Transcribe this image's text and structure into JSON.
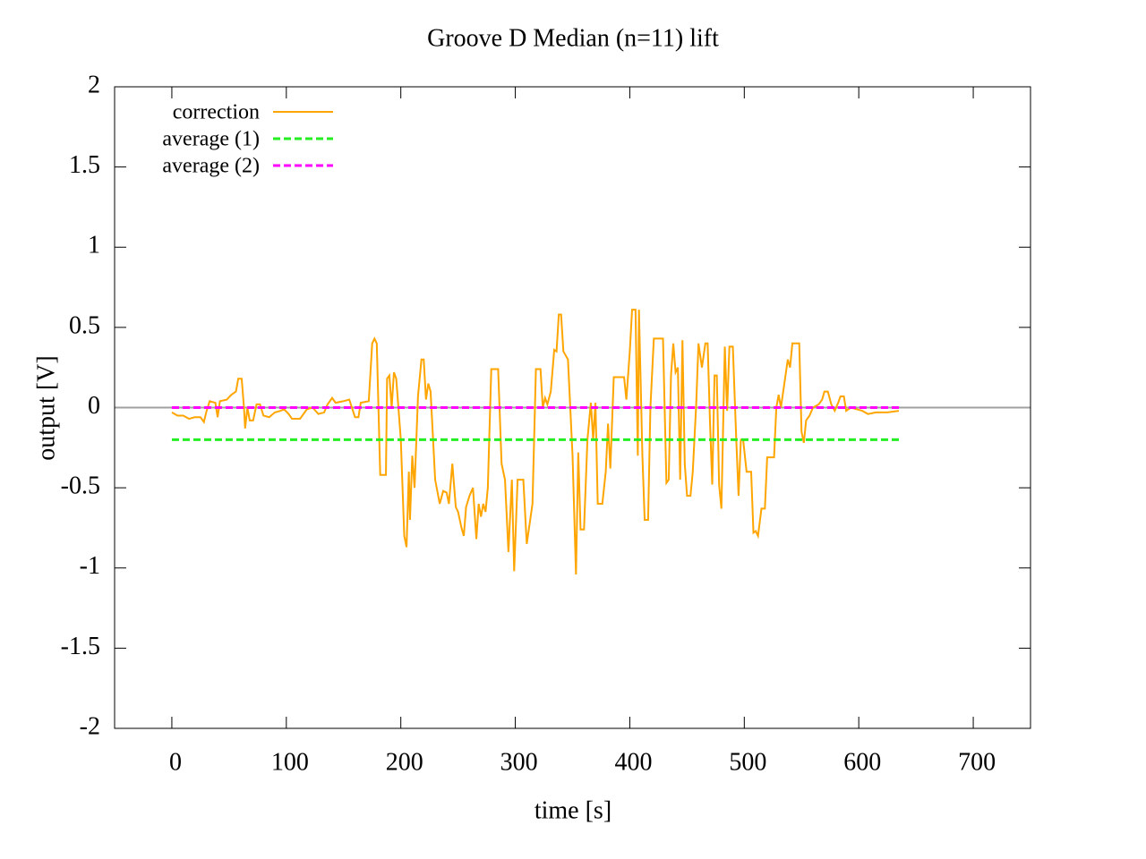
{
  "chart_data": {
    "type": "line",
    "title": "Groove D  Median (n=11) lift",
    "xlabel": "time [s]",
    "ylabel": "output [V]",
    "xlim": [
      -50,
      750
    ],
    "ylim": [
      -2,
      2
    ],
    "xticks": [
      0,
      100,
      200,
      300,
      400,
      500,
      600,
      700
    ],
    "yticks": [
      -2,
      -1.5,
      -1,
      -0.5,
      0,
      0.5,
      1,
      1.5,
      2
    ],
    "zeroaxis": true,
    "legend": "top-left",
    "series": [
      {
        "name": "correction",
        "color": "#ffa500",
        "dash": false,
        "x": [
          0,
          5,
          10,
          15,
          20,
          25,
          28,
          30,
          33,
          38,
          40,
          42,
          48,
          52,
          56,
          58,
          61,
          63,
          64,
          66,
          68,
          71,
          74,
          77,
          80,
          85,
          90,
          95,
          98,
          102,
          105,
          112,
          118,
          123,
          128,
          133,
          136,
          140,
          143,
          150,
          155,
          160,
          163,
          165,
          172,
          175,
          177,
          179,
          182,
          187,
          188,
          190,
          192,
          194,
          196,
          200,
          203,
          205,
          207,
          208,
          210,
          212,
          215,
          218,
          220,
          222,
          224,
          226,
          230,
          234,
          237,
          240,
          242,
          245,
          248,
          250,
          253,
          255,
          257,
          260,
          263,
          266,
          268,
          270,
          272,
          274,
          276,
          279,
          285,
          288,
          291,
          294,
          297,
          299,
          302,
          307,
          310,
          313,
          315,
          318,
          322,
          324,
          326,
          328,
          331,
          334,
          336,
          338,
          340,
          342,
          346,
          350,
          353,
          355,
          357,
          360,
          363,
          366,
          368,
          370,
          372,
          376,
          379,
          381,
          383,
          386,
          395,
          397,
          400,
          402,
          405,
          407,
          408,
          411,
          413,
          416,
          418,
          421,
          429,
          432,
          434,
          436,
          438,
          440,
          442,
          444,
          446,
          448,
          450,
          453,
          455,
          458,
          460,
          463,
          466,
          468,
          470,
          472,
          474,
          476,
          478,
          480,
          483,
          485,
          487,
          490,
          493,
          495,
          497,
          499,
          502,
          506,
          508,
          510,
          512,
          515,
          518,
          520,
          526,
          528,
          530,
          532,
          535,
          538,
          540,
          542,
          548,
          550,
          552,
          554,
          557,
          560,
          565,
          568,
          570,
          573,
          576,
          579,
          582,
          584,
          587,
          589,
          593,
          598,
          603,
          608,
          615,
          625,
          635
        ],
        "values": [
          -0.03,
          -0.05,
          -0.05,
          -0.07,
          -0.06,
          -0.06,
          -0.09,
          -0.03,
          0.04,
          0.03,
          -0.06,
          0.04,
          0.05,
          0.08,
          0.1,
          0.18,
          0.18,
          0.0,
          -0.13,
          0.0,
          -0.08,
          -0.08,
          0.02,
          0.02,
          -0.05,
          -0.06,
          -0.03,
          -0.02,
          -0.01,
          -0.04,
          -0.07,
          -0.07,
          -0.01,
          0.0,
          -0.04,
          -0.03,
          0.02,
          0.06,
          0.03,
          0.04,
          0.05,
          -0.06,
          -0.06,
          0.03,
          0.04,
          0.4,
          0.43,
          0.4,
          -0.42,
          -0.42,
          0.18,
          0.2,
          0.0,
          0.22,
          0.18,
          -0.2,
          -0.8,
          -0.87,
          -0.4,
          -0.7,
          -0.3,
          -0.5,
          0.07,
          0.3,
          0.3,
          0.05,
          0.15,
          0.1,
          -0.45,
          -0.6,
          -0.52,
          -0.53,
          -0.6,
          -0.35,
          -0.62,
          -0.65,
          -0.75,
          -0.8,
          -0.62,
          -0.55,
          -0.5,
          -0.82,
          -0.6,
          -0.68,
          -0.6,
          -0.65,
          -0.5,
          0.24,
          0.24,
          -0.35,
          -0.45,
          -0.9,
          -0.45,
          -1.02,
          -0.45,
          -0.45,
          -0.85,
          -0.7,
          -0.6,
          0.24,
          0.24,
          0.0,
          0.06,
          0.02,
          0.1,
          0.36,
          0.35,
          0.58,
          0.58,
          0.35,
          0.3,
          -0.3,
          -1.04,
          -0.28,
          -0.76,
          -0.76,
          -0.2,
          0.03,
          -0.2,
          0.03,
          -0.6,
          -0.6,
          -0.4,
          -0.1,
          -0.38,
          0.19,
          0.19,
          0.05,
          0.35,
          0.61,
          0.61,
          -0.3,
          0.61,
          -0.3,
          -0.7,
          -0.7,
          0.0,
          0.43,
          0.43,
          -0.47,
          -0.45,
          0.2,
          0.4,
          0.22,
          0.25,
          -0.45,
          0.42,
          -0.35,
          -0.55,
          -0.55,
          -0.4,
          0.02,
          0.4,
          0.25,
          0.4,
          0.4,
          -0.08,
          -0.48,
          0.2,
          0.2,
          -0.48,
          -0.63,
          0.38,
          -0.02,
          0.38,
          0.38,
          -0.2,
          -0.55,
          -0.2,
          -0.2,
          -0.4,
          -0.4,
          -0.78,
          -0.77,
          -0.8,
          -0.63,
          -0.63,
          -0.31,
          -0.31,
          0.0,
          0.08,
          0.0,
          0.15,
          0.3,
          0.25,
          0.4,
          0.4,
          -0.15,
          -0.22,
          -0.08,
          -0.05,
          0.0,
          0.02,
          0.05,
          0.1,
          0.1,
          0.02,
          -0.02,
          0.03,
          0.07,
          0.07,
          -0.02,
          0.0,
          -0.01,
          -0.02,
          -0.04,
          -0.03,
          -0.03,
          -0.02
        ]
      },
      {
        "name": "average (1)",
        "color": "#22ee22",
        "dash": true,
        "x": [
          0,
          635
        ],
        "values": [
          -0.2,
          -0.2
        ]
      },
      {
        "name": "average (2)",
        "color": "#ff00ff",
        "dash": true,
        "x": [
          0,
          635
        ],
        "values": [
          0.0,
          0.0
        ]
      }
    ]
  }
}
